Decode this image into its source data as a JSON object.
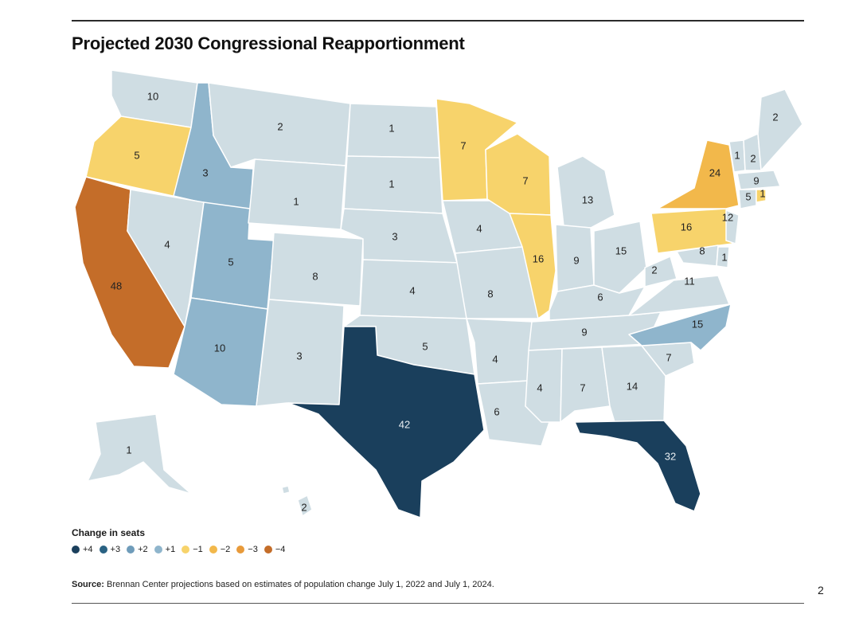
{
  "title": "Projected 2030 Congressional Reapportionment",
  "colors": {
    "plus4": "#1a3f5c",
    "plus3": "#2a6283",
    "plus2": "#6f9cba",
    "plus1": "#8fb5cc",
    "neutral": "#cfdde3",
    "minus1": "#f7d36b",
    "minus2": "#f2b84b",
    "minus3": "#e89a3a",
    "minus4": "#c46d29"
  },
  "states": [
    {
      "name": "Washington",
      "seats": "10",
      "change": "neutral"
    },
    {
      "name": "Oregon",
      "seats": "5",
      "change": "minus1"
    },
    {
      "name": "California",
      "seats": "48",
      "change": "minus4"
    },
    {
      "name": "Idaho",
      "seats": "3",
      "change": "plus1"
    },
    {
      "name": "Nevada",
      "seats": "4",
      "change": "neutral"
    },
    {
      "name": "Utah",
      "seats": "5",
      "change": "plus1"
    },
    {
      "name": "Arizona",
      "seats": "10",
      "change": "plus1"
    },
    {
      "name": "Montana",
      "seats": "2",
      "change": "neutral"
    },
    {
      "name": "Wyoming",
      "seats": "1",
      "change": "neutral"
    },
    {
      "name": "Colorado",
      "seats": "8",
      "change": "neutral"
    },
    {
      "name": "New Mexico",
      "seats": "3",
      "change": "neutral"
    },
    {
      "name": "North Dakota",
      "seats": "1",
      "change": "neutral"
    },
    {
      "name": "South Dakota",
      "seats": "1",
      "change": "neutral"
    },
    {
      "name": "Nebraska",
      "seats": "3",
      "change": "neutral"
    },
    {
      "name": "Kansas",
      "seats": "4",
      "change": "neutral"
    },
    {
      "name": "Oklahoma",
      "seats": "5",
      "change": "neutral"
    },
    {
      "name": "Texas",
      "seats": "42",
      "change": "plus4"
    },
    {
      "name": "Minnesota",
      "seats": "7",
      "change": "minus1"
    },
    {
      "name": "Iowa",
      "seats": "4",
      "change": "neutral"
    },
    {
      "name": "Missouri",
      "seats": "8",
      "change": "neutral"
    },
    {
      "name": "Arkansas",
      "seats": "4",
      "change": "neutral"
    },
    {
      "name": "Louisiana",
      "seats": "6",
      "change": "neutral"
    },
    {
      "name": "Wisconsin",
      "seats": "7",
      "change": "minus1"
    },
    {
      "name": "Illinois",
      "seats": "16",
      "change": "minus1"
    },
    {
      "name": "Michigan",
      "seats": "13",
      "change": "neutral"
    },
    {
      "name": "Indiana",
      "seats": "9",
      "change": "neutral"
    },
    {
      "name": "Ohio",
      "seats": "15",
      "change": "neutral"
    },
    {
      "name": "Kentucky",
      "seats": "6",
      "change": "neutral"
    },
    {
      "name": "Tennessee",
      "seats": "9",
      "change": "neutral"
    },
    {
      "name": "Mississippi",
      "seats": "4",
      "change": "neutral"
    },
    {
      "name": "Alabama",
      "seats": "7",
      "change": "neutral"
    },
    {
      "name": "Georgia",
      "seats": "14",
      "change": "neutral"
    },
    {
      "name": "Florida",
      "seats": "32",
      "change": "plus4"
    },
    {
      "name": "South Carolina",
      "seats": "7",
      "change": "neutral"
    },
    {
      "name": "North Carolina",
      "seats": "15",
      "change": "plus1"
    },
    {
      "name": "Virginia",
      "seats": "11",
      "change": "neutral"
    },
    {
      "name": "West Virginia",
      "seats": "2",
      "change": "neutral"
    },
    {
      "name": "Pennsylvania",
      "seats": "16",
      "change": "minus1"
    },
    {
      "name": "New York",
      "seats": "24",
      "change": "minus2"
    },
    {
      "name": "New Jersey",
      "seats": "12",
      "change": "neutral"
    },
    {
      "name": "Maryland",
      "seats": "8",
      "change": "neutral"
    },
    {
      "name": "Delaware",
      "seats": "1",
      "change": "neutral"
    },
    {
      "name": "Vermont",
      "seats": "1",
      "change": "neutral"
    },
    {
      "name": "New Hampshire",
      "seats": "2",
      "change": "neutral"
    },
    {
      "name": "Massachusetts",
      "seats": "9",
      "change": "neutral"
    },
    {
      "name": "Connecticut",
      "seats": "5",
      "change": "neutral"
    },
    {
      "name": "Rhode Island",
      "seats": "1",
      "change": "minus1"
    },
    {
      "name": "Maine",
      "seats": "2",
      "change": "neutral"
    },
    {
      "name": "Alaska",
      "seats": "1",
      "change": "neutral"
    },
    {
      "name": "Hawaii",
      "seats": "2",
      "change": "neutral"
    }
  ],
  "legend": {
    "title": "Change in seats",
    "items": [
      {
        "label": "+4",
        "change": "plus4"
      },
      {
        "label": "+3",
        "change": "plus3"
      },
      {
        "label": "+2",
        "change": "plus2"
      },
      {
        "label": "+1",
        "change": "plus1"
      },
      {
        "label": "−1",
        "change": "minus1"
      },
      {
        "label": "−2",
        "change": "minus2"
      },
      {
        "label": "−3",
        "change": "minus3"
      },
      {
        "label": "−4",
        "change": "minus4"
      }
    ]
  },
  "source": {
    "label": "Source:",
    "text": " Brennan Center projections based on estimates of population change July 1, 2022 and July 1, 2024."
  },
  "page_number": "2"
}
